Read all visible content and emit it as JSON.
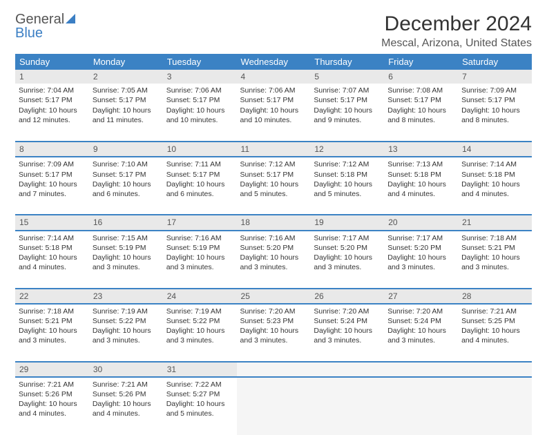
{
  "logo": {
    "text1": "General",
    "text2": "Blue"
  },
  "title": "December 2024",
  "location": "Mescal, Arizona, United States",
  "colors": {
    "header_bg": "#3b82c4",
    "header_fg": "#ffffff",
    "daynum_bg": "#e9e9e9",
    "border": "#3b82c4",
    "logo_gray": "#555555",
    "logo_blue": "#3b7fc4"
  },
  "typography": {
    "title_fontsize": 30,
    "location_fontsize": 16,
    "header_fontsize": 13,
    "cell_fontsize": 10.5
  },
  "dayHeaders": [
    "Sunday",
    "Monday",
    "Tuesday",
    "Wednesday",
    "Thursday",
    "Friday",
    "Saturday"
  ],
  "weeks": [
    [
      {
        "n": "1",
        "sr": "7:04 AM",
        "ss": "5:17 PM",
        "dl": "10 hours and 12 minutes."
      },
      {
        "n": "2",
        "sr": "7:05 AM",
        "ss": "5:17 PM",
        "dl": "10 hours and 11 minutes."
      },
      {
        "n": "3",
        "sr": "7:06 AM",
        "ss": "5:17 PM",
        "dl": "10 hours and 10 minutes."
      },
      {
        "n": "4",
        "sr": "7:06 AM",
        "ss": "5:17 PM",
        "dl": "10 hours and 10 minutes."
      },
      {
        "n": "5",
        "sr": "7:07 AM",
        "ss": "5:17 PM",
        "dl": "10 hours and 9 minutes."
      },
      {
        "n": "6",
        "sr": "7:08 AM",
        "ss": "5:17 PM",
        "dl": "10 hours and 8 minutes."
      },
      {
        "n": "7",
        "sr": "7:09 AM",
        "ss": "5:17 PM",
        "dl": "10 hours and 8 minutes."
      }
    ],
    [
      {
        "n": "8",
        "sr": "7:09 AM",
        "ss": "5:17 PM",
        "dl": "10 hours and 7 minutes."
      },
      {
        "n": "9",
        "sr": "7:10 AM",
        "ss": "5:17 PM",
        "dl": "10 hours and 6 minutes."
      },
      {
        "n": "10",
        "sr": "7:11 AM",
        "ss": "5:17 PM",
        "dl": "10 hours and 6 minutes."
      },
      {
        "n": "11",
        "sr": "7:12 AM",
        "ss": "5:17 PM",
        "dl": "10 hours and 5 minutes."
      },
      {
        "n": "12",
        "sr": "7:12 AM",
        "ss": "5:18 PM",
        "dl": "10 hours and 5 minutes."
      },
      {
        "n": "13",
        "sr": "7:13 AM",
        "ss": "5:18 PM",
        "dl": "10 hours and 4 minutes."
      },
      {
        "n": "14",
        "sr": "7:14 AM",
        "ss": "5:18 PM",
        "dl": "10 hours and 4 minutes."
      }
    ],
    [
      {
        "n": "15",
        "sr": "7:14 AM",
        "ss": "5:18 PM",
        "dl": "10 hours and 4 minutes."
      },
      {
        "n": "16",
        "sr": "7:15 AM",
        "ss": "5:19 PM",
        "dl": "10 hours and 3 minutes."
      },
      {
        "n": "17",
        "sr": "7:16 AM",
        "ss": "5:19 PM",
        "dl": "10 hours and 3 minutes."
      },
      {
        "n": "18",
        "sr": "7:16 AM",
        "ss": "5:20 PM",
        "dl": "10 hours and 3 minutes."
      },
      {
        "n": "19",
        "sr": "7:17 AM",
        "ss": "5:20 PM",
        "dl": "10 hours and 3 minutes."
      },
      {
        "n": "20",
        "sr": "7:17 AM",
        "ss": "5:20 PM",
        "dl": "10 hours and 3 minutes."
      },
      {
        "n": "21",
        "sr": "7:18 AM",
        "ss": "5:21 PM",
        "dl": "10 hours and 3 minutes."
      }
    ],
    [
      {
        "n": "22",
        "sr": "7:18 AM",
        "ss": "5:21 PM",
        "dl": "10 hours and 3 minutes."
      },
      {
        "n": "23",
        "sr": "7:19 AM",
        "ss": "5:22 PM",
        "dl": "10 hours and 3 minutes."
      },
      {
        "n": "24",
        "sr": "7:19 AM",
        "ss": "5:22 PM",
        "dl": "10 hours and 3 minutes."
      },
      {
        "n": "25",
        "sr": "7:20 AM",
        "ss": "5:23 PM",
        "dl": "10 hours and 3 minutes."
      },
      {
        "n": "26",
        "sr": "7:20 AM",
        "ss": "5:24 PM",
        "dl": "10 hours and 3 minutes."
      },
      {
        "n": "27",
        "sr": "7:20 AM",
        "ss": "5:24 PM",
        "dl": "10 hours and 3 minutes."
      },
      {
        "n": "28",
        "sr": "7:21 AM",
        "ss": "5:25 PM",
        "dl": "10 hours and 4 minutes."
      }
    ],
    [
      {
        "n": "29",
        "sr": "7:21 AM",
        "ss": "5:26 PM",
        "dl": "10 hours and 4 minutes."
      },
      {
        "n": "30",
        "sr": "7:21 AM",
        "ss": "5:26 PM",
        "dl": "10 hours and 4 minutes."
      },
      {
        "n": "31",
        "sr": "7:22 AM",
        "ss": "5:27 PM",
        "dl": "10 hours and 5 minutes."
      },
      null,
      null,
      null,
      null
    ]
  ],
  "labels": {
    "sunrise": "Sunrise:",
    "sunset": "Sunset:",
    "daylight": "Daylight:"
  }
}
